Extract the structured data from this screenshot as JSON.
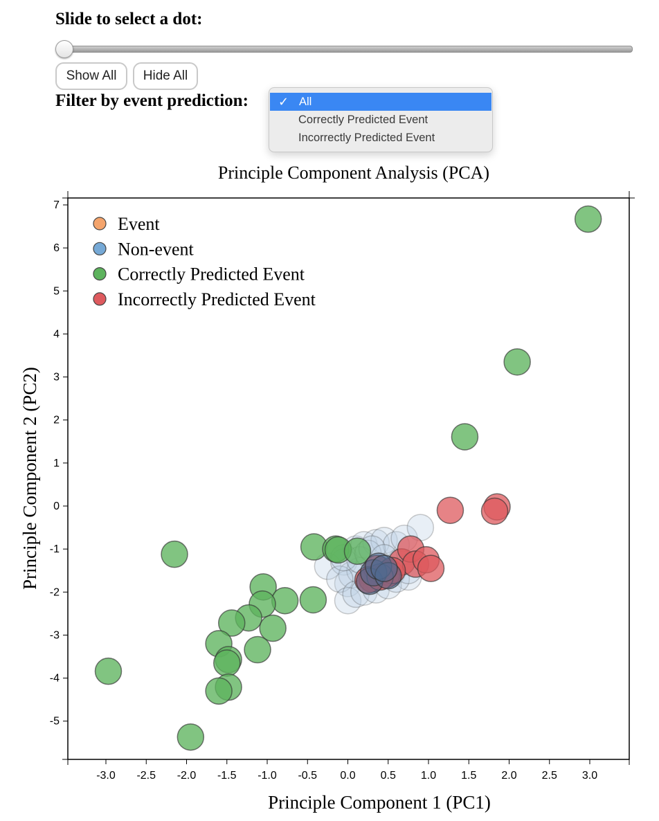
{
  "controls": {
    "slider_label": "Slide to select a dot:",
    "slider_value": 0,
    "show_all_label": "Show All",
    "hide_all_label": "Hide All",
    "filter_label": "Filter by event prediction:",
    "filter_options": [
      "All",
      "Correctly Predicted Event",
      "Incorrectly Predicted Event"
    ],
    "filter_selected": "All"
  },
  "chart_data": {
    "type": "scatter",
    "title": "Principle Component Analysis (PCA)",
    "xlabel": "Principle Component 1 (PC1)",
    "ylabel": "Principle Component 2 (PC2)",
    "xlim": [
      -3.5,
      3.5
    ],
    "ylim": [
      -5.8,
      7.2
    ],
    "xticks": [
      -3.0,
      -2.5,
      -2.0,
      -1.5,
      -1.0,
      -0.5,
      0.0,
      0.5,
      1.0,
      1.5,
      2.0,
      2.5,
      3.0
    ],
    "xtick_labels": [
      "-3.0",
      "-2.5",
      "-2.0",
      "-1.5",
      "-1.0",
      "-0.5",
      "0.0",
      "0.5",
      "1.0",
      "1.5",
      "2.0",
      "2.5",
      "3.0"
    ],
    "yticks": [
      -5,
      -4,
      -3,
      -2,
      -1,
      0,
      1,
      2,
      3,
      4,
      5,
      6,
      7
    ],
    "ytick_labels": [
      "-5",
      "-4",
      "-3",
      "-2",
      "-1",
      "0",
      "1",
      "2",
      "3",
      "4",
      "5",
      "6",
      "7"
    ],
    "grid": false,
    "legend_position": "top-left",
    "legend": [
      {
        "name": "Event",
        "color": "#f4a46c"
      },
      {
        "name": "Non-event",
        "color": "#76a9d6"
      },
      {
        "name": "Correctly Predicted Event",
        "color": "#5db35d"
      },
      {
        "name": "Incorrectly Predicted Event",
        "color": "#de5a5e"
      }
    ],
    "series": [
      {
        "name": "Non-event",
        "color": "#bcd0e6",
        "x": [
          -0.25,
          -0.05,
          0.1,
          0.2,
          0.35,
          0.45,
          0.6,
          0.7,
          0.9,
          0.0,
          0.05,
          0.15,
          0.3,
          0.4,
          0.55,
          0.65,
          0.75,
          -0.1,
          0.0,
          0.1,
          0.2,
          0.35,
          0.5,
          0.6,
          0.75,
          -0.05,
          0.15,
          0.25,
          0.3,
          0.45
        ],
        "y": [
          -1.4,
          -1.3,
          -1.0,
          -0.9,
          -0.85,
          -0.8,
          -0.9,
          -0.75,
          -0.5,
          -1.8,
          -1.6,
          -1.5,
          -1.6,
          -1.4,
          -1.55,
          -1.3,
          -1.65,
          -1.7,
          -2.2,
          -2.05,
          -2.0,
          -1.95,
          -1.85,
          -1.7,
          -1.5,
          -1.2,
          -1.25,
          -1.1,
          -1.0,
          -1.2
        ]
      },
      {
        "name": "Correctly Predicted Event",
        "color": "#5db35d",
        "x": [
          2.98,
          2.1,
          1.45,
          -2.15,
          -0.42,
          -0.15,
          -0.12,
          -1.05,
          -0.78,
          -0.43,
          -1.06,
          -1.23,
          -1.44,
          -0.93,
          -1.6,
          -1.12,
          -1.48,
          -1.5,
          -1.48,
          -1.6,
          -2.97,
          -1.95,
          0.12
        ],
        "y": [
          6.67,
          3.35,
          1.61,
          -1.12,
          -0.95,
          -1.0,
          -1.02,
          -1.88,
          -2.2,
          -2.18,
          -2.28,
          -2.6,
          -2.72,
          -2.84,
          -3.2,
          -3.34,
          -3.57,
          -3.65,
          -4.21,
          -4.3,
          -3.84,
          -5.37,
          -1.05
        ]
      },
      {
        "name": "Incorrectly Predicted Event",
        "color": "#de5a5e",
        "x": [
          1.85,
          1.82,
          1.27,
          0.3,
          0.36,
          0.52,
          0.67,
          0.78,
          0.84,
          0.97,
          1.03,
          0.25,
          0.48,
          0.55,
          0.4
        ],
        "y": [
          -0.02,
          -0.12,
          -0.1,
          -1.7,
          -1.45,
          -1.55,
          -1.3,
          -1.0,
          -1.35,
          -1.25,
          -1.45,
          -1.72,
          -1.6,
          -1.5,
          -1.65
        ]
      },
      {
        "name": "Event",
        "color": "#4e6a90",
        "x": [
          0.27,
          0.32,
          0.38,
          0.5,
          0.45
        ],
        "y": [
          -1.75,
          -1.55,
          -1.4,
          -1.62,
          -1.45
        ]
      }
    ]
  }
}
